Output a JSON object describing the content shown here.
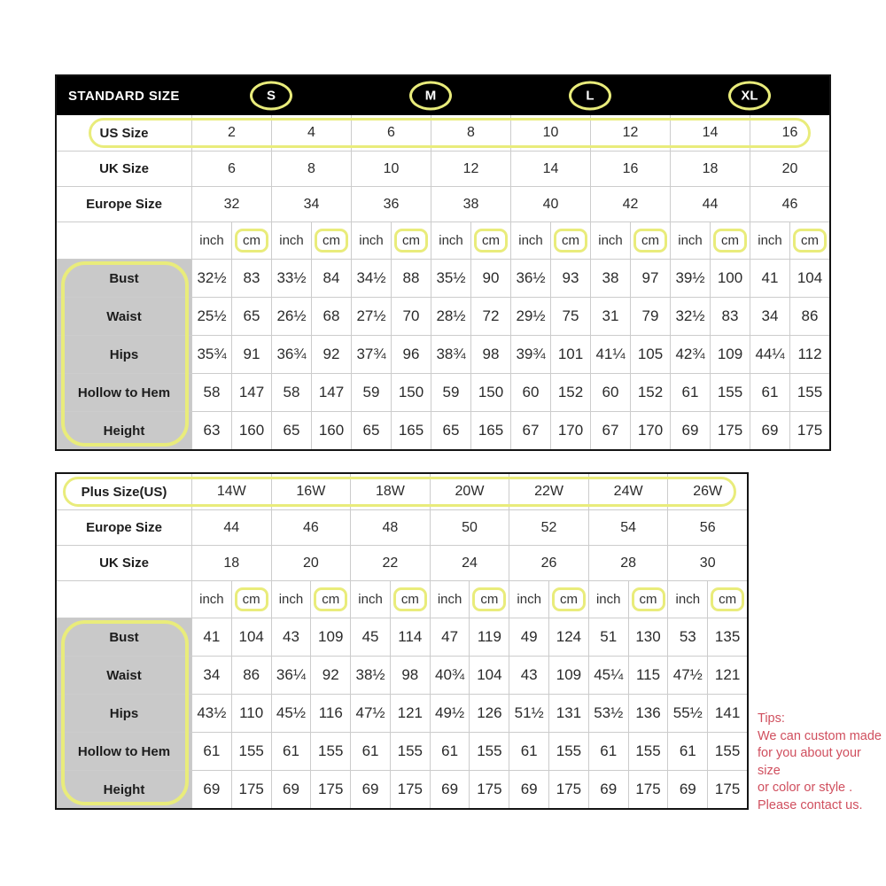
{
  "colors": {
    "highlight_yellow": "#e9ec7b",
    "header_bg": "#000000",
    "header_text": "#ffffff",
    "label_cell_bg": "#c9c9c9",
    "grid_line": "#cccccc",
    "tips_red": "#d04f5e",
    "table_border": "#141414"
  },
  "standard_table": {
    "title": "STANDARD SIZE",
    "size_badges": [
      "S",
      "M",
      "L",
      "XL"
    ],
    "size_rows": [
      {
        "label": "US Size",
        "values": [
          "2",
          "4",
          "6",
          "8",
          "10",
          "12",
          "14",
          "16"
        ],
        "highlight": true
      },
      {
        "label": "UK Size",
        "values": [
          "6",
          "8",
          "10",
          "12",
          "14",
          "16",
          "18",
          "20"
        ],
        "highlight": false
      },
      {
        "label": "Europe Size",
        "values": [
          "32",
          "34",
          "36",
          "38",
          "40",
          "42",
          "44",
          "46"
        ],
        "highlight": false
      }
    ],
    "unit_pair": [
      "inch",
      "cm"
    ],
    "unit_pairs_count": 8,
    "measure_rows": [
      {
        "label": "Bust",
        "values": [
          "32½",
          "83",
          "33½",
          "84",
          "34½",
          "88",
          "35½",
          "90",
          "36½",
          "93",
          "38",
          "97",
          "39½",
          "100",
          "41",
          "104"
        ]
      },
      {
        "label": "Waist",
        "values": [
          "25½",
          "65",
          "26½",
          "68",
          "27½",
          "70",
          "28½",
          "72",
          "29½",
          "75",
          "31",
          "79",
          "32½",
          "83",
          "34",
          "86"
        ]
      },
      {
        "label": "Hips",
        "values": [
          "35¾",
          "91",
          "36¾",
          "92",
          "37¾",
          "96",
          "38¾",
          "98",
          "39¾",
          "101",
          "41¼",
          "105",
          "42¾",
          "109",
          "44¼",
          "112"
        ]
      },
      {
        "label": "Hollow to Hem",
        "values": [
          "58",
          "147",
          "58",
          "147",
          "59",
          "150",
          "59",
          "150",
          "60",
          "152",
          "60",
          "152",
          "61",
          "155",
          "61",
          "155"
        ]
      },
      {
        "label": "Height",
        "values": [
          "63",
          "160",
          "65",
          "160",
          "65",
          "165",
          "65",
          "165",
          "67",
          "170",
          "67",
          "170",
          "69",
          "175",
          "69",
          "175"
        ]
      }
    ]
  },
  "plus_table": {
    "size_rows": [
      {
        "label": "Plus Size(US)",
        "values": [
          "14W",
          "16W",
          "18W",
          "20W",
          "22W",
          "24W",
          "26W"
        ],
        "highlight": true
      },
      {
        "label": "Europe Size",
        "values": [
          "44",
          "46",
          "48",
          "50",
          "52",
          "54",
          "56"
        ],
        "highlight": false
      },
      {
        "label": "UK Size",
        "values": [
          "18",
          "20",
          "22",
          "24",
          "26",
          "28",
          "30"
        ],
        "highlight": false
      }
    ],
    "unit_pair": [
      "inch",
      "cm"
    ],
    "unit_pairs_count": 7,
    "measure_rows": [
      {
        "label": "Bust",
        "values": [
          "41",
          "104",
          "43",
          "109",
          "45",
          "114",
          "47",
          "119",
          "49",
          "124",
          "51",
          "130",
          "53",
          "135"
        ]
      },
      {
        "label": "Waist",
        "values": [
          "34",
          "86",
          "36¼",
          "92",
          "38½",
          "98",
          "40¾",
          "104",
          "43",
          "109",
          "45¼",
          "115",
          "47½",
          "121"
        ]
      },
      {
        "label": "Hips",
        "values": [
          "43½",
          "110",
          "45½",
          "116",
          "47½",
          "121",
          "49½",
          "126",
          "51½",
          "131",
          "53½",
          "136",
          "55½",
          "141"
        ]
      },
      {
        "label": "Hollow to Hem",
        "values": [
          "61",
          "155",
          "61",
          "155",
          "61",
          "155",
          "61",
          "155",
          "61",
          "155",
          "61",
          "155",
          "61",
          "155"
        ]
      },
      {
        "label": "Height",
        "values": [
          "69",
          "175",
          "69",
          "175",
          "69",
          "175",
          "69",
          "175",
          "69",
          "175",
          "69",
          "175",
          "69",
          "175"
        ]
      }
    ]
  },
  "tips": {
    "title": "Tips:",
    "lines": [
      "We can custom made",
      "for you about your size",
      "or color or style .",
      "Please contact us."
    ]
  }
}
